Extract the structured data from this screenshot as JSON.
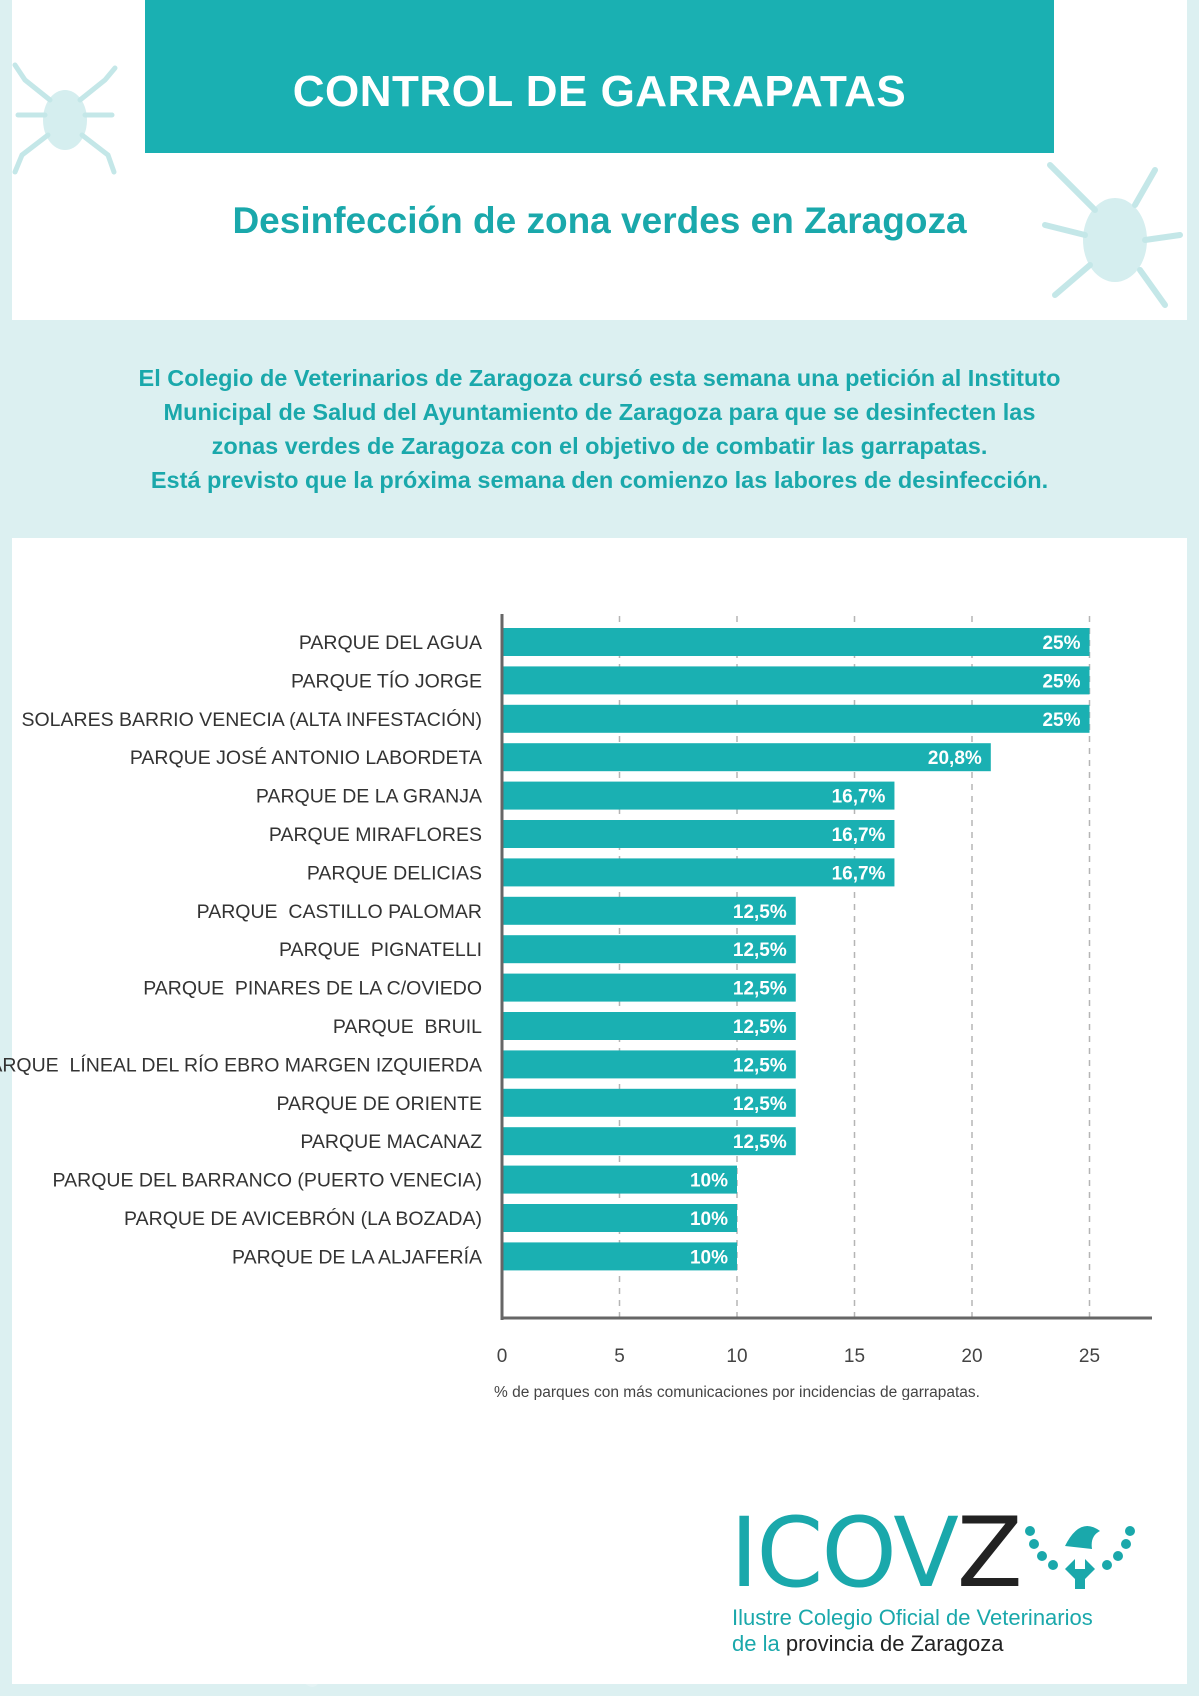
{
  "header": {
    "title": "CONTROL DE GARRAPATAS",
    "subtitle": "Desinfección de zona verdes en Zaragoza"
  },
  "intro": {
    "lines": [
      "El Colegio de Veterinarios de Zaragoza cursó esta semana una petición al Instituto",
      "Municipal de Salud del Ayuntamiento de Zaragoza para que se desinfecten las",
      "zonas verdes de Zaragoza con el objetivo de combatir las garrapatas.",
      "Está previsto que la próxima semana den comienzo las labores de desinfección."
    ]
  },
  "chart_data": {
    "type": "bar",
    "orientation": "horizontal",
    "categories": [
      "PARQUE DEL AGUA",
      "PARQUE TÍO JORGE",
      "SOLARES BARRIO VENECIA (ALTA INFESTACIÓN)",
      "PARQUE JOSÉ ANTONIO LABORDETA",
      "PARQUE DE LA GRANJA",
      "PARQUE MIRAFLORES",
      "PARQUE DELICIAS",
      "PARQUE  CASTILLO PALOMAR",
      "PARQUE  PIGNATELLI",
      "PARQUE  PINARES DE LA C/OVIEDO",
      "PARQUE  BRUIL",
      "PARQUE  LÍNEAL DEL RÍO EBRO MARGEN IZQUIERDA",
      "PARQUE DE ORIENTE",
      "PARQUE MACANAZ",
      "PARQUE DEL BARRANCO (PUERTO VENECIA)",
      "PARQUE DE AVICEBRÓN (LA BOZADA)",
      "PARQUE DE LA ALJAFERÍA"
    ],
    "values": [
      25,
      25,
      25,
      20.8,
      16.7,
      16.7,
      16.7,
      12.5,
      12.5,
      12.5,
      12.5,
      12.5,
      12.5,
      12.5,
      10,
      10,
      10
    ],
    "value_labels": [
      "25%",
      "25%",
      "25%",
      "20,8%",
      "16,7%",
      "16,7%",
      "16,7%",
      "12,5%",
      "12,5%",
      "12,5%",
      "12,5%",
      "12,5%",
      "12,5%",
      "12,5%",
      "10%",
      "10%",
      "10%"
    ],
    "xticks": [
      0,
      5,
      10,
      15,
      20,
      25
    ],
    "xlim": [
      0,
      27.5
    ],
    "xlabel": "% de parques con más comunicaciones por incidencias de garrapatas.",
    "grid": "vertical dashed",
    "bar_color": "#1ab0b2"
  },
  "logo": {
    "word": "ICOVZ",
    "line1": "Ilustre Colegio Oficial de Veterinarios",
    "line2_a": "de la",
    "line2_b": "provincia de Zaragoza"
  },
  "colors": {
    "teal": "#1ab0b2",
    "background": "#dcf0f1",
    "text_dark": "#333333"
  }
}
